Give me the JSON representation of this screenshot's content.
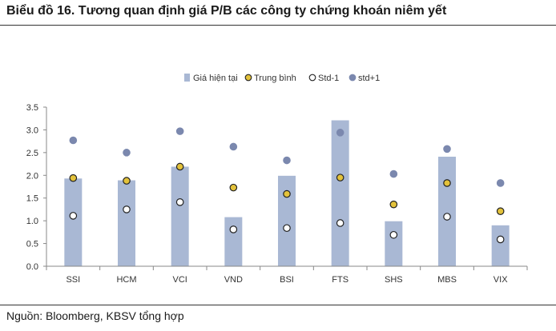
{
  "header": {
    "title": "Biểu đồ 16. Tương quan định giá P/B các công ty chứng khoán niêm yết"
  },
  "footer": {
    "source": "Nguồn: Bloomberg, KBSV tổng hợp"
  },
  "colors": {
    "bar": "#a9b8d4",
    "mean": "#e3c23b",
    "std_minus": "#ffffff",
    "std_plus": "#7b88ae",
    "axis": "#888888",
    "dot_stroke": "#222222"
  },
  "chart_data": {
    "type": "bar",
    "categories": [
      "SSI",
      "HCM",
      "VCI",
      "VND",
      "BSI",
      "FTS",
      "SHS",
      "MBS",
      "VIX"
    ],
    "series": [
      {
        "name": "Giá hiện tại",
        "kind": "bar",
        "values": [
          1.93,
          1.89,
          2.19,
          1.08,
          1.99,
          3.21,
          0.99,
          2.41,
          0.9
        ]
      },
      {
        "name": "Trung bình",
        "kind": "scatter",
        "values": [
          1.94,
          1.88,
          2.19,
          1.73,
          1.59,
          1.95,
          1.36,
          1.83,
          1.21
        ]
      },
      {
        "name": "Std-1",
        "kind": "scatter",
        "values": [
          1.11,
          1.25,
          1.41,
          0.81,
          0.84,
          0.95,
          0.69,
          1.09,
          0.59
        ]
      },
      {
        "name": "std+1",
        "kind": "scatter",
        "values": [
          2.77,
          2.5,
          2.97,
          2.63,
          2.33,
          2.94,
          2.03,
          2.58,
          1.83
        ]
      }
    ],
    "yticks": [
      "0.0",
      "0.5",
      "1.0",
      "1.5",
      "2.0",
      "2.5",
      "3.0",
      "3.5"
    ],
    "ylim": [
      0,
      3.5
    ],
    "legend_position": "top-center",
    "grid": false
  }
}
